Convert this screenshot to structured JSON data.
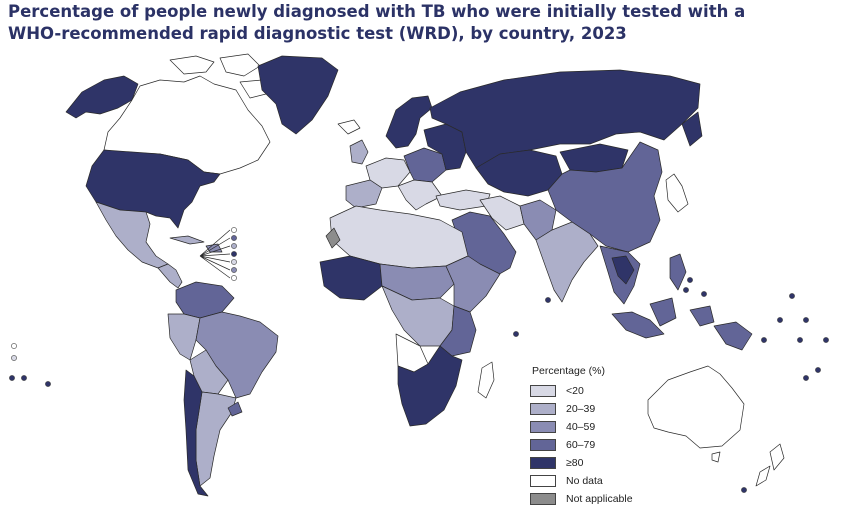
{
  "title": {
    "line1": "Percentage of people newly diagnosed with TB who were initially tested with a",
    "line2": "WHO-recommended rapid diagnostic test (WRD), by country, 2023"
  },
  "colors": {
    "lt20": "#d8d9e5",
    "c20_39": "#adafc9",
    "c40_59": "#8a8cb3",
    "c60_79": "#626597",
    "ge80": "#2f3468",
    "no_data": "#ffffff",
    "not_applicable": "#8c8c8c",
    "border": "#2a2a2a"
  },
  "legend": {
    "title": "Percentage (%)",
    "items": [
      {
        "label": "<20",
        "color": "#d8d9e5"
      },
      {
        "label": "20–39",
        "color": "#adafc9"
      },
      {
        "label": "40–59",
        "color": "#8a8cb3"
      },
      {
        "label": "60–79",
        "color": "#626597"
      },
      {
        "label": "≥80",
        "color": "#2f3468"
      },
      {
        "label": "No data",
        "color": "#ffffff"
      },
      {
        "label": "Not applicable",
        "color": "#8c8c8c"
      }
    ]
  }
}
